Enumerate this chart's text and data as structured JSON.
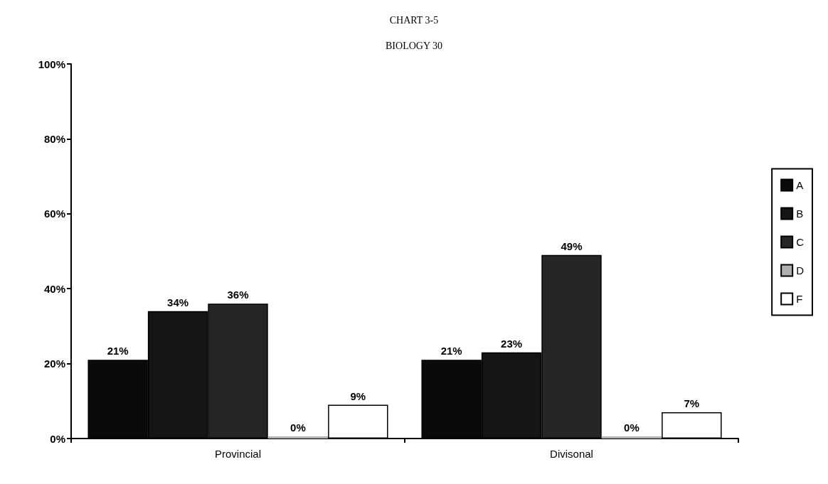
{
  "chart_data": {
    "type": "bar",
    "title": "CHART 3-5",
    "subtitle": "BIOLOGY 30",
    "categories": [
      "Provincial",
      "Divisonal"
    ],
    "series": [
      {
        "name": "A",
        "color": "#0a0a0a",
        "values": [
          21,
          21
        ],
        "value_labels": [
          "21%",
          "21%"
        ]
      },
      {
        "name": "B",
        "color": "#151515",
        "values": [
          34,
          23
        ],
        "value_labels": [
          "34%",
          "23%"
        ]
      },
      {
        "name": "C",
        "color": "#262626",
        "values": [
          36,
          49
        ],
        "value_labels": [
          "36%",
          "49%"
        ]
      },
      {
        "name": "D",
        "color": "#b0b0b0",
        "values": [
          0,
          0
        ],
        "value_labels": [
          "0%",
          "0%"
        ]
      },
      {
        "name": "F",
        "color": "#ffffff",
        "values": [
          9,
          7
        ],
        "value_labels": [
          "9%",
          "7%"
        ]
      }
    ],
    "ylim": [
      0,
      100
    ],
    "yticks": [
      {
        "value": 0,
        "label": "0%"
      },
      {
        "value": 20,
        "label": "20%"
      },
      {
        "value": 40,
        "label": "40%"
      },
      {
        "value": 60,
        "label": "60%"
      },
      {
        "value": 80,
        "label": "80%"
      },
      {
        "value": 100,
        "label": "100%"
      }
    ],
    "grid": false,
    "legend": "right"
  }
}
